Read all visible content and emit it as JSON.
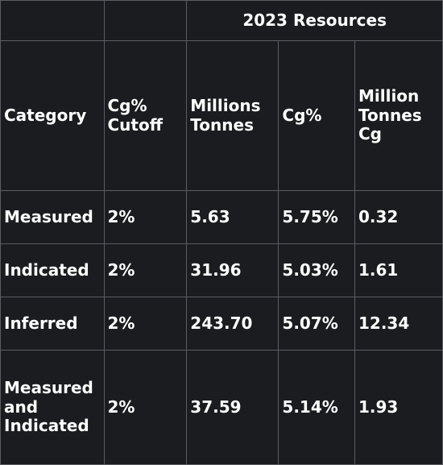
{
  "table": {
    "group_header": "2023 Resources",
    "headers": [
      "Category",
      "Cg%\nCutoff",
      "Millions\nTonnes",
      "Cg%",
      "Million\nTonnes\nCg"
    ],
    "rows": [
      [
        "Measured",
        "2%",
        "5.63",
        "5.75%",
        "0.32"
      ],
      [
        "Indicated",
        "2%",
        "31.96",
        "5.03%",
        "1.61"
      ],
      [
        "Inferred",
        "2%",
        "243.70",
        "5.07%",
        "12.34"
      ],
      [
        "Measured\nand\nIndicated",
        "2%",
        "37.59",
        "5.14%",
        "1.93"
      ]
    ]
  }
}
